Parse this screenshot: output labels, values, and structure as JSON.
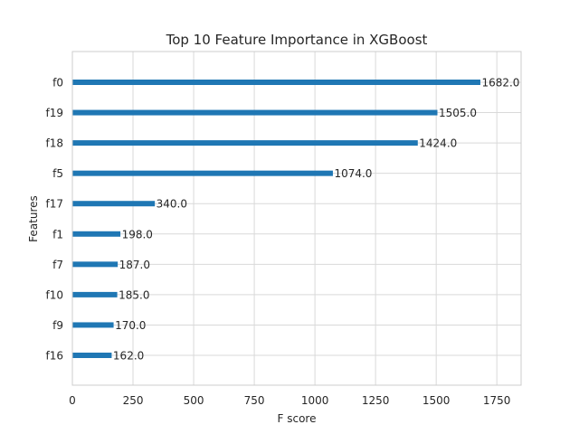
{
  "chart_data": {
    "type": "bar",
    "orientation": "horizontal",
    "title": "Top 10 Feature Importance in XGBoost",
    "xlabel": "F score",
    "ylabel": "Features",
    "categories": [
      "f0",
      "f19",
      "f18",
      "f5",
      "f17",
      "f1",
      "f7",
      "f10",
      "f9",
      "f16"
    ],
    "values": [
      1682,
      1505,
      1424,
      1074,
      340,
      198,
      187,
      185,
      170,
      162
    ],
    "value_labels": [
      "1682.0",
      "1505.0",
      "1424.0",
      "1074.0",
      "340.0",
      "198.0",
      "187.0",
      "185.0",
      "170.0",
      "162.0"
    ],
    "xlim": [
      0,
      1850
    ],
    "xticks": [
      0,
      250,
      500,
      750,
      1000,
      1250,
      1500,
      1750
    ],
    "grid": true,
    "bar_color": "#1f77b4"
  }
}
